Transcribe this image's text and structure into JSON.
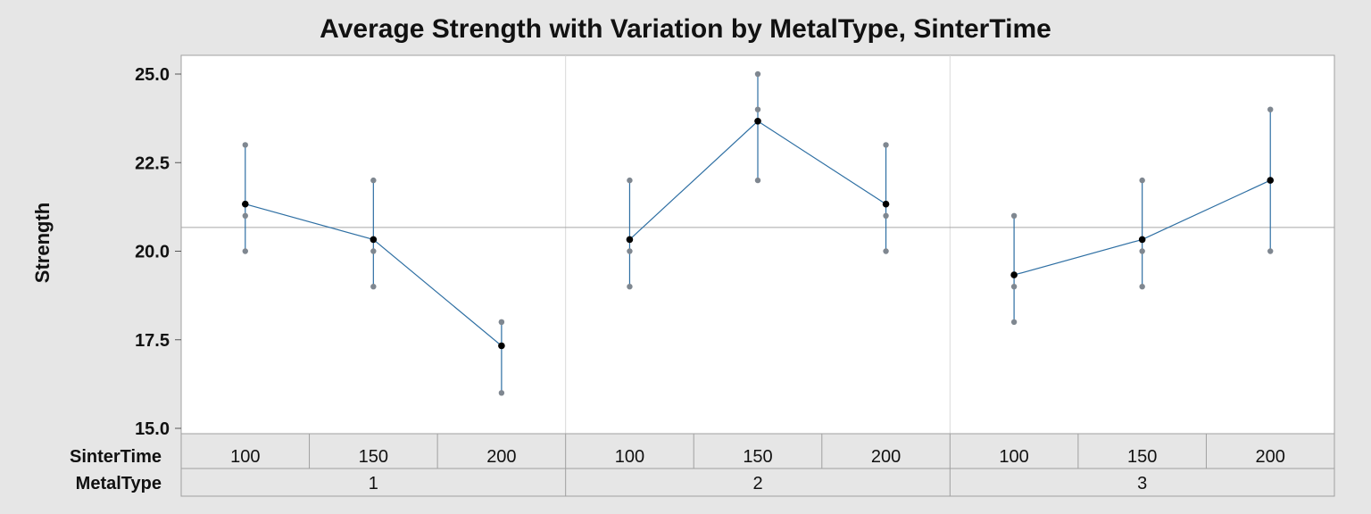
{
  "chart_data": {
    "type": "variability",
    "title": "Average Strength with Variation by MetalType, SinterTime",
    "ylabel": "Strength",
    "ylim": [
      15.0,
      25.0
    ],
    "yticks": [
      "15.0",
      "17.5",
      "20.0",
      "22.5",
      "25.0"
    ],
    "grand_mean": 20.67,
    "factor_labels": {
      "inner": "SinterTime",
      "outer": "MetalType"
    },
    "colors": {
      "line": "#2e6fa3",
      "mean_point": "#000000",
      "data_point": "#7f8790",
      "reference": "#a6a6a6"
    },
    "groups": [
      {
        "metal_type": "1",
        "cells": [
          {
            "sinter_time": "100",
            "mean": 21.33,
            "observations": [
              20,
              21,
              23
            ]
          },
          {
            "sinter_time": "150",
            "mean": 20.33,
            "observations": [
              19,
              20,
              22
            ]
          },
          {
            "sinter_time": "200",
            "mean": 17.33,
            "observations": [
              16,
              18,
              18
            ]
          }
        ]
      },
      {
        "metal_type": "2",
        "cells": [
          {
            "sinter_time": "100",
            "mean": 20.33,
            "observations": [
              19,
              20,
              22
            ]
          },
          {
            "sinter_time": "150",
            "mean": 23.67,
            "observations": [
              22,
              24,
              25
            ]
          },
          {
            "sinter_time": "200",
            "mean": 21.33,
            "observations": [
              20,
              21,
              23
            ]
          }
        ]
      },
      {
        "metal_type": "3",
        "cells": [
          {
            "sinter_time": "100",
            "mean": 19.33,
            "observations": [
              18,
              19,
              21
            ]
          },
          {
            "sinter_time": "150",
            "mean": 20.33,
            "observations": [
              19,
              20,
              22
            ]
          },
          {
            "sinter_time": "200",
            "mean": 22.0,
            "observations": [
              20,
              22,
              24
            ]
          }
        ]
      }
    ]
  }
}
